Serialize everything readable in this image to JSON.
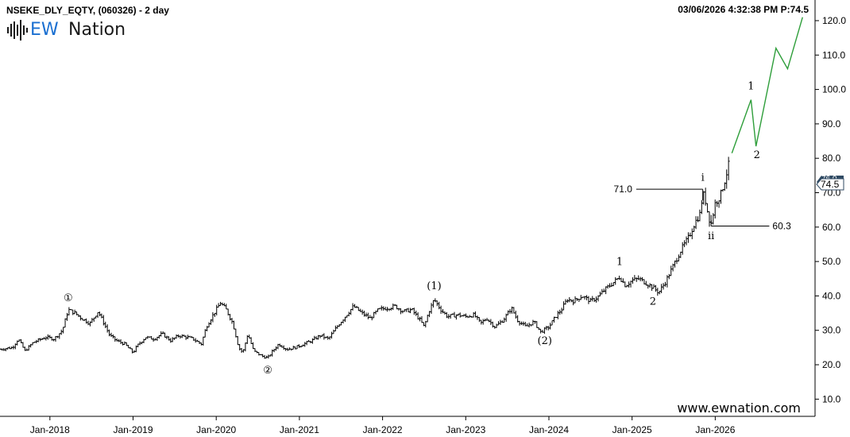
{
  "header": {
    "symbol": "NSEKE_DLY_EQTY, (060326) - 2 day",
    "datetime_price": "03/06/2026 4:32:38 PM  P:74.5"
  },
  "logo": {
    "ew": "EW",
    "name": "Nation"
  },
  "watermark": "www.ewnation.com",
  "price_tag": "74.5",
  "price_tag_behind": "76.0",
  "colors": {
    "bars": "#000000",
    "projection": "#2e9e3a",
    "tag_bg": "#2f4a63"
  },
  "chart_data": {
    "type": "ohlc",
    "ylim": [
      5,
      126
    ],
    "yticks": [
      10,
      20,
      30,
      40,
      50,
      60,
      70,
      80,
      90,
      100,
      110,
      120
    ],
    "ytick_labels": [
      "10.0",
      "20.0",
      "30.0",
      "40.0",
      "50.0",
      "60.0",
      "70.0",
      "80.0",
      "90.0",
      "100.0",
      "110.0",
      "120.0"
    ],
    "xtick_labels": [
      "Jan-2018",
      "Jan-2019",
      "Jan-2020",
      "Jan-2021",
      "Jan-2022",
      "Jan-2023",
      "Jan-2024",
      "Jan-2025",
      "Jan-2026"
    ],
    "xticks": [
      2018.0,
      2019.0,
      2020.0,
      2021.0,
      2022.0,
      2023.0,
      2024.0,
      2025.0,
      2026.0
    ],
    "xlim": [
      2017.4,
      2027.2
    ],
    "series": [
      {
        "price_path": [
          [
            2017.4,
            24.5
          ],
          [
            2017.55,
            25.0
          ],
          [
            2017.62,
            27.5
          ],
          [
            2017.7,
            24.0
          ],
          [
            2017.8,
            26.5
          ],
          [
            2017.95,
            28.0
          ],
          [
            2018.05,
            27.5
          ],
          [
            2018.15,
            30.0
          ],
          [
            2018.22,
            36.0
          ],
          [
            2018.3,
            35.0
          ],
          [
            2018.38,
            33.5
          ],
          [
            2018.48,
            32.0
          ],
          [
            2018.58,
            35.5
          ],
          [
            2018.65,
            32.0
          ],
          [
            2018.72,
            28.5
          ],
          [
            2018.8,
            27.0
          ],
          [
            2018.9,
            26.0
          ],
          [
            2019.0,
            23.5
          ],
          [
            2019.05,
            25.5
          ],
          [
            2019.15,
            28.0
          ],
          [
            2019.25,
            27.5
          ],
          [
            2019.35,
            29.0
          ],
          [
            2019.45,
            27.0
          ],
          [
            2019.55,
            28.5
          ],
          [
            2019.65,
            28.0
          ],
          [
            2019.72,
            27.5
          ],
          [
            2019.82,
            26.0
          ],
          [
            2019.88,
            31.0
          ],
          [
            2019.95,
            34.0
          ],
          [
            2020.05,
            38.0
          ],
          [
            2020.12,
            36.0
          ],
          [
            2020.2,
            32.0
          ],
          [
            2020.27,
            25.0
          ],
          [
            2020.32,
            23.5
          ],
          [
            2020.38,
            29.0
          ],
          [
            2020.45,
            24.0
          ],
          [
            2020.55,
            22.5
          ],
          [
            2020.62,
            22.0
          ],
          [
            2020.68,
            24.0
          ],
          [
            2020.75,
            26.0
          ],
          [
            2020.85,
            24.5
          ],
          [
            2020.95,
            25.0
          ],
          [
            2021.05,
            26.0
          ],
          [
            2021.15,
            27.0
          ],
          [
            2021.25,
            28.5
          ],
          [
            2021.35,
            27.5
          ],
          [
            2021.45,
            31.0
          ],
          [
            2021.55,
            34.0
          ],
          [
            2021.65,
            37.0
          ],
          [
            2021.75,
            35.0
          ],
          [
            2021.85,
            33.5
          ],
          [
            2021.95,
            36.0
          ],
          [
            2022.05,
            36.5
          ],
          [
            2022.15,
            37.0
          ],
          [
            2022.25,
            35.5
          ],
          [
            2022.35,
            36.0
          ],
          [
            2022.45,
            33.0
          ],
          [
            2022.5,
            31.0
          ],
          [
            2022.55,
            35.0
          ],
          [
            2022.62,
            39.0
          ],
          [
            2022.7,
            36.0
          ],
          [
            2022.78,
            34.0
          ],
          [
            2022.9,
            34.5
          ],
          [
            2023.0,
            34.0
          ],
          [
            2023.1,
            34.5
          ],
          [
            2023.18,
            32.0
          ],
          [
            2023.25,
            33.5
          ],
          [
            2023.35,
            31.0
          ],
          [
            2023.45,
            33.0
          ],
          [
            2023.55,
            36.5
          ],
          [
            2023.62,
            33.0
          ],
          [
            2023.72,
            31.0
          ],
          [
            2023.82,
            32.5
          ],
          [
            2023.9,
            29.5
          ],
          [
            2024.0,
            31.0
          ],
          [
            2024.08,
            34.0
          ],
          [
            2024.15,
            36.0
          ],
          [
            2024.22,
            39.0
          ],
          [
            2024.3,
            38.5
          ],
          [
            2024.4,
            40.0
          ],
          [
            2024.5,
            38.5
          ],
          [
            2024.58,
            39.5
          ],
          [
            2024.68,
            42.0
          ],
          [
            2024.78,
            44.0
          ],
          [
            2024.85,
            45.5
          ],
          [
            2024.92,
            43.0
          ],
          [
            2025.0,
            44.5
          ],
          [
            2025.08,
            45.0
          ],
          [
            2025.15,
            44.0
          ],
          [
            2025.25,
            42.5
          ],
          [
            2025.32,
            41.0
          ],
          [
            2025.4,
            44.0
          ],
          [
            2025.48,
            48.0
          ],
          [
            2025.58,
            53.0
          ],
          [
            2025.68,
            57.0
          ],
          [
            2025.75,
            61.0
          ],
          [
            2025.82,
            64.0
          ],
          [
            2025.85,
            70.0
          ],
          [
            2025.88,
            68.0
          ],
          [
            2025.92,
            63.0
          ],
          [
            2025.95,
            60.8
          ],
          [
            2026.0,
            67.0
          ],
          [
            2026.06,
            69.0
          ],
          [
            2026.12,
            74.0
          ],
          [
            2026.16,
            78.0
          ]
        ]
      },
      {
        "name": "",
        "projection": [
          [
            2026.2,
            81.5
          ],
          [
            2026.43,
            97.0
          ],
          [
            2026.49,
            83.5
          ],
          [
            2026.73,
            112.0
          ],
          [
            2026.87,
            106.0
          ],
          [
            2027.05,
            121.0
          ]
        ]
      }
    ],
    "levels": [
      {
        "label": "71.0",
        "value": 71.0,
        "x_from": 2025.05,
        "x_to": 2025.85
      },
      {
        "label": "60.3",
        "value": 60.3,
        "x_from": 2025.95,
        "x_to": 2026.65
      }
    ],
    "wave_labels": [
      {
        "text": "①",
        "x": 2018.22,
        "y": 38.5
      },
      {
        "text": "②",
        "x": 2020.62,
        "y": 17.5
      },
      {
        "text": "(1)",
        "x": 2022.62,
        "y": 42.0
      },
      {
        "text": "(2)",
        "x": 2023.95,
        "y": 26.0
      },
      {
        "text": "1",
        "x": 2024.85,
        "y": 49.0
      },
      {
        "text": "2",
        "x": 2025.25,
        "y": 37.5
      },
      {
        "text": "i",
        "x": 2025.85,
        "y": 73.5
      },
      {
        "text": "ii",
        "x": 2025.95,
        "y": 56.5
      },
      {
        "text": "1",
        "x": 2026.43,
        "y": 100.0
      },
      {
        "text": "2",
        "x": 2026.5,
        "y": 80.0
      }
    ]
  }
}
